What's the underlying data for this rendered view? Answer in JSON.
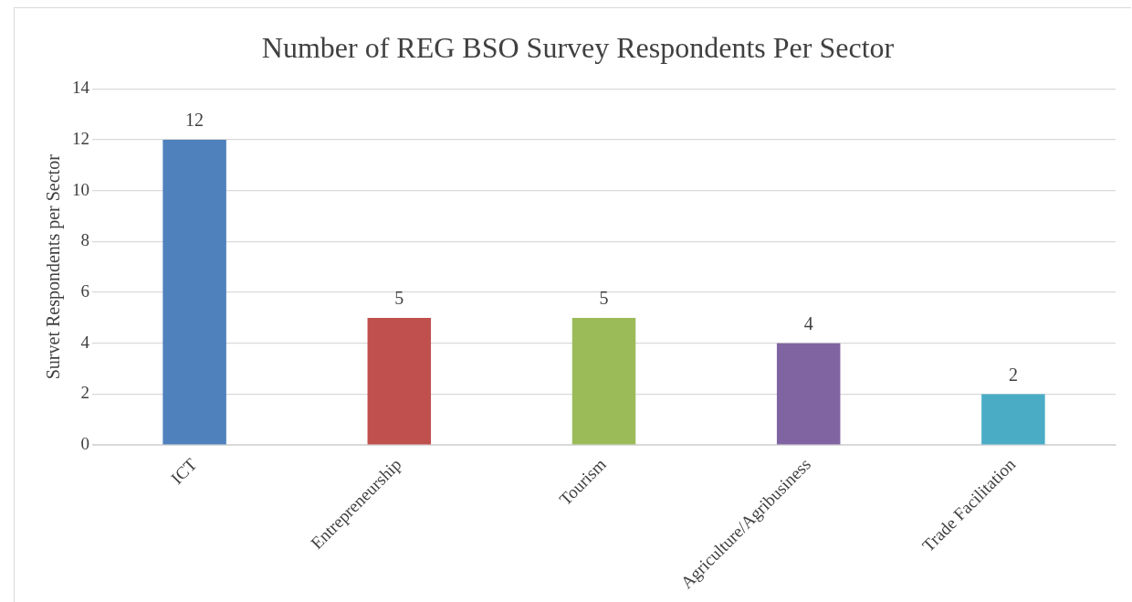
{
  "chart_data": {
    "type": "bar",
    "title": "Number of REG BSO Survey Respondents Per Sector",
    "ylabel": "Survet Respondents per Sector",
    "categories": [
      "ICT",
      "Entrepreneurship",
      "Tourism",
      "Agriculture/Agribusiness",
      "Trade Facilitation"
    ],
    "values": [
      12,
      5,
      5,
      4,
      2
    ],
    "colors": [
      "#4f81bd",
      "#c0504d",
      "#9bbb59",
      "#8064a2",
      "#4bacc6"
    ],
    "ylim": [
      0,
      14
    ],
    "yticks": [
      0,
      2,
      4,
      6,
      8,
      10,
      12,
      14
    ],
    "grid": "y",
    "data_labels": true
  }
}
